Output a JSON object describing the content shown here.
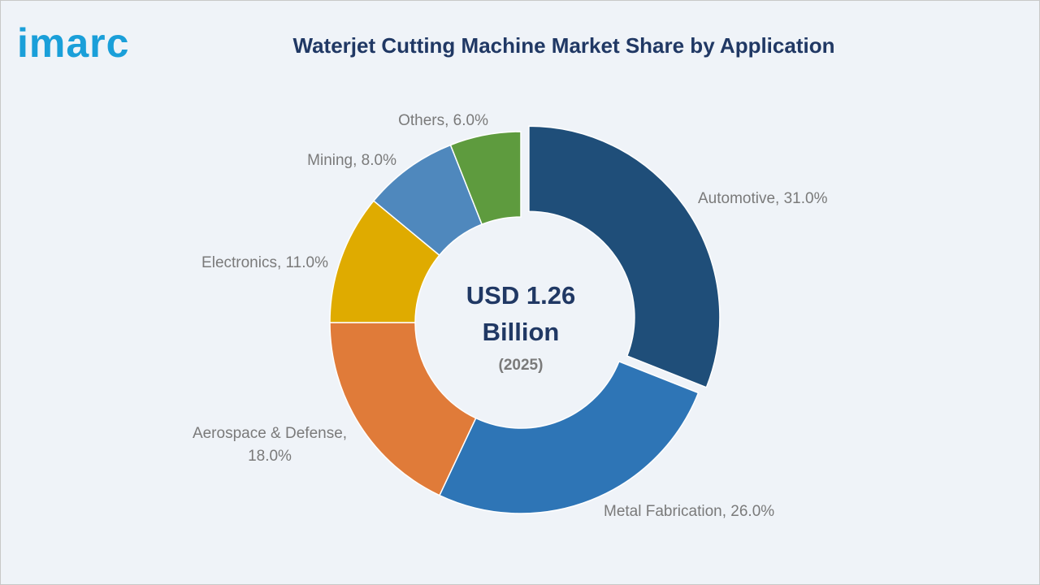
{
  "logo": "imarc",
  "chart_data": {
    "type": "donut",
    "title": "Waterjet Cutting Machine Market Share by Application",
    "labels": [
      "Automotive, 31.0%",
      "Metal Fabrication, 26.0%",
      "Aerospace & Defense, 18.0%",
      "Electronics, 11.0%",
      "Mining, 8.0%",
      "Others, 6.0%"
    ],
    "values": [
      31,
      26,
      18,
      11,
      8,
      6
    ],
    "colors": [
      "#1f4e79",
      "#2e75b6",
      "#e07b39",
      "#dfab00",
      "#4f88bd",
      "#5e9b3e"
    ],
    "center_label": "USD 1.26 Billion",
    "center_sublabel": "(2025)"
  }
}
